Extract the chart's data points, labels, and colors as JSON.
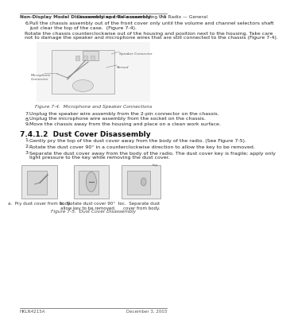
{
  "bg_color": "#ffffff",
  "page_width": 3.0,
  "page_height": 3.88,
  "header_bold_text": "Non-Display Model Disassembly and Re-assembly:",
  "header_regular_text": " Disassembling and Re-assembling the Radio — General",
  "header_right": "7-5",
  "footer_left": "HKLN4215A",
  "footer_right": "December 3, 2003",
  "body_text": [
    {
      "indent": 1,
      "number": "6.",
      "text": "Pull the chassis assembly out of the front cover only until the volume and channel selectors shaft\njust clear the top of the case.  (Figure 7-4)."
    },
    {
      "indent": 0,
      "number": "",
      "text": "Rotate the chassis counterclockwise out of the housing and position next to the housing. Take care\nnot to damage the speaker and microphone wires that are still connected to the chassis (Figure 7-4)."
    }
  ],
  "fig74_caption": "Figure 7-4.  Microphone and Speaker Connections",
  "list_items_7": [
    {
      "number": "7.",
      "text": "Unplug the speaker wire assembly from the 2-pin connector on the chassis."
    },
    {
      "number": "8.",
      "text": "Unplug the microphone wire assembly from the socket on the chassis."
    },
    {
      "number": "9.",
      "text": "Move the chassis away from the housing and place on a clean work surface."
    }
  ],
  "section_title": "7.4.1.2  Dust Cover Disassembly",
  "dust_steps": [
    {
      "number": "1.",
      "text": "Gently pry the top of the dust cover away from the body of the radio. (See Figure 7-5)."
    },
    {
      "number": "2.",
      "text": "Rotate the dust cover 90° in a counterclockwise direction to allow the key to be removed."
    },
    {
      "number": "3.",
      "text": "Separate the dust cover away from the body of the radio. The dust cover key is fragile; apply only\nlight pressure to the key while removing the dust cover."
    }
  ],
  "fig75_caption": "Figure 7-5.  Dust Cover Disassembly",
  "subfig_a_label": "a.  Pry dust cover from body.",
  "subfig_b_label": "b.  Rotate dust cover 90°  to\nallow key to be removed.",
  "subfig_c_label": "c.  Separate dust\ncover from body."
}
